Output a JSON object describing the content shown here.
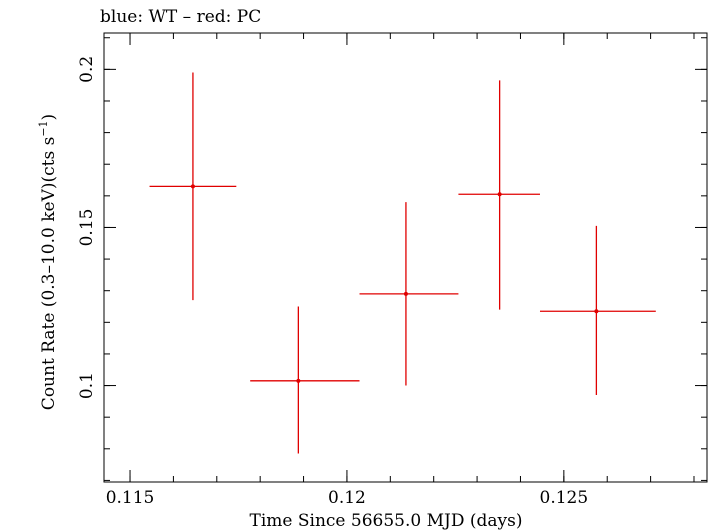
{
  "chart_data": {
    "type": "scatter",
    "title": "blue: WT – red: PC",
    "xlabel": "Time Since 56655.0 MJD (days)",
    "ylabel_parts": {
      "prefix": "Count Rate (0.3–10.0 keV)(cts s",
      "exponent": "−1",
      "suffix": ")"
    },
    "xlim": [
      0.1144,
      0.1283
    ],
    "ylim": [
      0.0695,
      0.2115
    ],
    "x_ticks": [
      {
        "value": 0.115,
        "label": "0.115"
      },
      {
        "value": 0.12,
        "label": "0.12"
      },
      {
        "value": 0.125,
        "label": "0.125"
      }
    ],
    "y_ticks": [
      {
        "value": 0.1,
        "label": "0.1"
      },
      {
        "value": 0.15,
        "label": "0.15"
      },
      {
        "value": 0.2,
        "label": "0.2"
      }
    ],
    "grid": false,
    "series": [
      {
        "color": "#e00000",
        "points": [
          {
            "x": 0.11645,
            "xerr_low": 0.11545,
            "xerr_high": 0.11745,
            "y": 0.163,
            "yerr_low": 0.127,
            "yerr_high": 0.199
          },
          {
            "x": 0.11888,
            "xerr_low": 0.11777,
            "xerr_high": 0.12029,
            "y": 0.1015,
            "yerr_low": 0.0785,
            "yerr_high": 0.125
          },
          {
            "x": 0.12136,
            "xerr_low": 0.12029,
            "xerr_high": 0.12257,
            "y": 0.129,
            "yerr_low": 0.1,
            "yerr_high": 0.158
          },
          {
            "x": 0.12352,
            "xerr_low": 0.12257,
            "xerr_high": 0.12445,
            "y": 0.1605,
            "yerr_low": 0.124,
            "yerr_high": 0.1965
          },
          {
            "x": 0.12575,
            "xerr_low": 0.12445,
            "xerr_high": 0.12712,
            "y": 0.1235,
            "yerr_low": 0.097,
            "yerr_high": 0.1505
          }
        ]
      }
    ]
  }
}
